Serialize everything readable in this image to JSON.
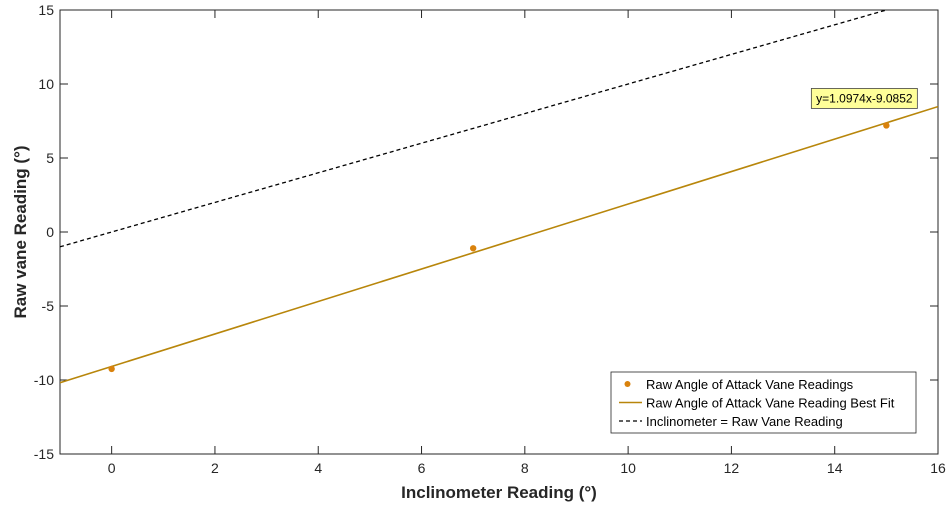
{
  "chart_data": {
    "type": "scatter",
    "xlabel": "Inclinometer Reading (°)",
    "ylabel": "Raw vane Reading (°)",
    "xlim": [
      -1,
      16
    ],
    "ylim": [
      -15,
      15
    ],
    "xticks": [
      0,
      2,
      4,
      6,
      8,
      10,
      12,
      14,
      16
    ],
    "yticks": [
      -15,
      -10,
      -5,
      0,
      5,
      10,
      15
    ],
    "grid": false,
    "legend_position": "bottom-right",
    "series": [
      {
        "name": "Raw Angle of Attack Vane Readings",
        "kind": "scatter",
        "color": "#D9820D",
        "x": [
          0,
          7,
          15
        ],
        "y": [
          -9.25,
          -1.1,
          7.2
        ]
      },
      {
        "name": "Raw Angle of Attack Vane Reading Best Fit",
        "kind": "line",
        "color": "#B8860B",
        "slope": 1.0974,
        "intercept": -9.0852,
        "x_range": [
          -1,
          16
        ]
      },
      {
        "name": "Inclinometer = Raw Vane Reading",
        "kind": "line",
        "style": "dashed",
        "color": "#000000",
        "slope": 1,
        "intercept": 0,
        "x_range": [
          -1,
          16
        ]
      }
    ],
    "annotations": [
      {
        "text": "y=1.0974x-9.0852",
        "x": 15,
        "y": 7.2,
        "background": "#FFFF99"
      }
    ]
  }
}
